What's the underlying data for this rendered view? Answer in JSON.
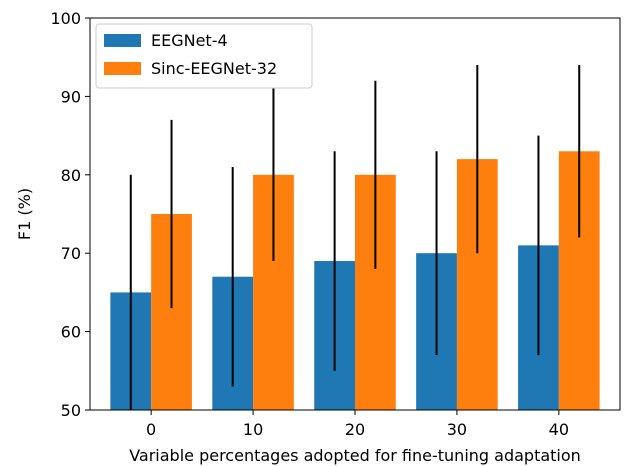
{
  "chart_data": {
    "type": "bar",
    "categories": [
      "0",
      "10",
      "20",
      "30",
      "40"
    ],
    "series": [
      {
        "name": "EEGNet-4",
        "color": "#1f77b4",
        "values": [
          65,
          67,
          69,
          70,
          71
        ],
        "err_low": [
          50,
          53,
          55,
          57,
          57
        ],
        "err_high": [
          80,
          81,
          83,
          83,
          85
        ]
      },
      {
        "name": "Sinc-EEGNet-32",
        "color": "#ff7f0e",
        "values": [
          75,
          80,
          80,
          82,
          83
        ],
        "err_low": [
          63,
          69,
          68,
          70,
          72
        ],
        "err_high": [
          87,
          91,
          92,
          94,
          94
        ]
      }
    ],
    "xlabel": "Variable percentages adopted for fine-tuning adaptation",
    "ylabel": "F1 (%)",
    "ylim": [
      50,
      100
    ],
    "yticks": [
      "50",
      "60",
      "70",
      "80",
      "90",
      "100"
    ],
    "legend_position": "top-left",
    "grid": false
  }
}
